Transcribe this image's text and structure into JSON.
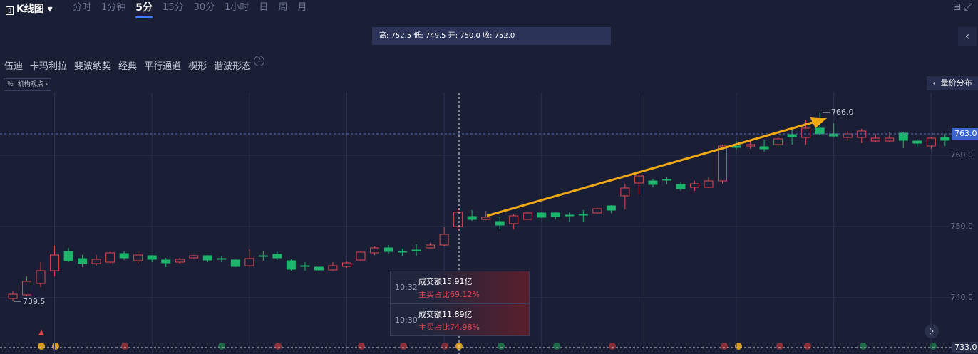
{
  "header": {
    "chart_type": "K线图",
    "tabs": [
      {
        "label": "分时"
      },
      {
        "label": "1分钟"
      },
      {
        "label": "5分",
        "active": true
      },
      {
        "label": "15分"
      },
      {
        "label": "30分"
      },
      {
        "label": "1小时"
      },
      {
        "label": "日"
      },
      {
        "label": "周"
      },
      {
        "label": "月"
      }
    ]
  },
  "info_bar": "高: 752.5 低: 749.5 开: 750.0 收: 752.0",
  "tools": [
    "伍迪",
    "卡玛利拉",
    "斐波纳契",
    "经典",
    "平行通道",
    "楔形",
    "谐波形态"
  ],
  "help": "?",
  "views_button": "机构观点",
  "volume_button": "量价分布",
  "tooltip": [
    {
      "time": "10:32",
      "amount": "成交额15.91亿",
      "ratio": "主买占比69.12%"
    },
    {
      "time": "10:30",
      "amount": "成交额11.89亿",
      "ratio": "主买占比74.98%"
    }
  ],
  "chart_data": {
    "type": "candlestick",
    "up_color": "#e0464f",
    "down_color": "#1db56c",
    "ylim": [
      732.1,
      768.8
    ],
    "yticks": [
      {
        "value": 740,
        "label": "740.0"
      },
      {
        "value": 750,
        "label": "750.0"
      },
      {
        "value": 760,
        "label": "760.0"
      }
    ],
    "current_price": {
      "value": 763,
      "label": "763.0"
    },
    "bottom_line": {
      "value": 733,
      "label": "733.0"
    },
    "low_label": {
      "value": 739.5,
      "label": "739.5"
    },
    "high_label": {
      "value": 766,
      "label": "766.0"
    },
    "open": [
      739.9,
      740.4,
      742,
      743.8,
      746.5,
      745.5,
      744.8,
      745,
      746.2,
      745.2,
      745.9,
      745.3,
      745,
      745.6,
      745.9,
      745.5,
      745.3,
      744.5,
      745.9,
      746.1,
      745.2,
      744.5,
      744.3,
      743.9,
      744.4,
      745.3,
      746.3,
      747,
      746.5,
      746.7,
      747,
      747.4,
      750,
      751.4,
      751,
      750.7,
      750.4,
      751,
      751.9,
      751.9,
      751.6,
      751.7,
      751.9,
      752.9,
      754.3,
      756.1,
      756.4,
      756.6,
      755.9,
      755.5,
      755.5,
      756.4,
      761.3,
      761.3,
      761.2,
      761.5,
      762.9,
      762.5,
      763.8,
      763,
      762.5,
      762.5,
      762,
      762,
      763.1,
      762,
      761.3,
      762.5
    ],
    "high": [
      741,
      743,
      745,
      747.3,
      747,
      746,
      746,
      746.5,
      746.5,
      746.5,
      746,
      745.6,
      745.6,
      746,
      746,
      745.9,
      745.4,
      746.8,
      746.6,
      746.5,
      745.4,
      745,
      744.5,
      745,
      745.1,
      746.6,
      747.2,
      747.4,
      746.9,
      747.5,
      747.7,
      749.9,
      752.5,
      752.3,
      752.2,
      751.3,
      751.7,
      752,
      752,
      752,
      752,
      752.3,
      752.6,
      753,
      756,
      757.6,
      756.7,
      756.9,
      756.2,
      756.4,
      756.9,
      761.5,
      762,
      762,
      762.1,
      762.5,
      763.5,
      765,
      766,
      764.5,
      763.4,
      763.7,
      763,
      763.2,
      763.3,
      762.3,
      762.6,
      763
    ],
    "low": [
      739.5,
      740.2,
      741.5,
      743,
      745,
      744.3,
      744.5,
      744.8,
      745.3,
      744.8,
      745,
      744.3,
      744.8,
      745.5,
      745,
      745,
      744.3,
      744.3,
      745.2,
      745.3,
      743.8,
      743.8,
      743.8,
      743.8,
      744.2,
      745.2,
      746,
      746.2,
      745.9,
      745.9,
      746.9,
      747.2,
      749.5,
      750.8,
      750.9,
      749.6,
      749.6,
      751,
      751.2,
      751,
      750.7,
      750.6,
      751.8,
      751.9,
      752.4,
      754.5,
      755.5,
      755.9,
      755,
      755,
      755.4,
      756,
      760.8,
      760.9,
      760.5,
      761,
      761.5,
      761.5,
      762.8,
      762.5,
      762,
      761.7,
      761.8,
      761.8,
      761,
      761.2,
      760.9,
      761.3
    ],
    "close": [
      740.5,
      742.3,
      743.8,
      746,
      745.2,
      744.8,
      745.4,
      746.3,
      745.6,
      746,
      745.4,
      744.9,
      745.4,
      745.9,
      745.3,
      745.4,
      744.4,
      745.5,
      745.8,
      745.6,
      744,
      744.4,
      743.9,
      744.5,
      744.9,
      746.4,
      747,
      746.5,
      746.4,
      746.6,
      747.4,
      748.9,
      752,
      751,
      751.3,
      750.2,
      751.5,
      751.9,
      751.3,
      751.4,
      751.5,
      751.6,
      752.5,
      752.3,
      755.4,
      757.1,
      755.9,
      756.5,
      755.3,
      756,
      756.4,
      761.3,
      761.1,
      761.5,
      760.9,
      762.3,
      762.6,
      763.8,
      763,
      762.7,
      763,
      763.4,
      762.4,
      762.4,
      762.1,
      761.7,
      762.4,
      762.1
    ]
  }
}
